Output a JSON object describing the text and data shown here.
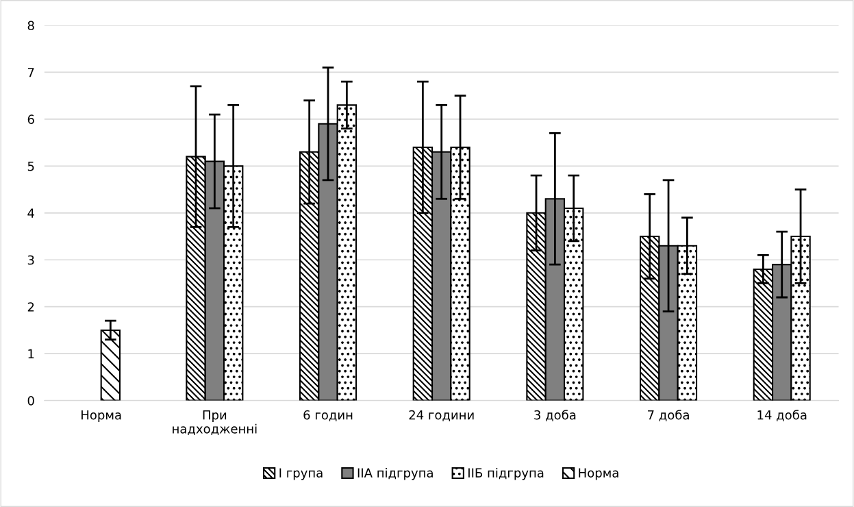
{
  "chart_data": {
    "type": "bar",
    "categories": [
      "Норма",
      "При\nнадходженні",
      "6 годин",
      "24 години",
      "3 доба",
      "7 доба",
      "14 доба"
    ],
    "series": [
      {
        "name": "I група",
        "color": "#000000",
        "values": [
          null,
          5.2,
          5.3,
          5.4,
          4.0,
          3.5,
          2.8
        ],
        "errors": [
          null,
          1.5,
          1.1,
          1.4,
          0.8,
          0.9,
          0.3
        ]
      },
      {
        "name": "IIA підгрупа",
        "color": "#808080",
        "values": [
          null,
          5.1,
          5.9,
          5.3,
          4.3,
          3.3,
          2.9
        ],
        "errors": [
          null,
          1.0,
          1.2,
          1.0,
          1.4,
          1.4,
          0.7
        ]
      },
      {
        "name": "IIБ підгрупа",
        "color": "#000000",
        "values": [
          null,
          5.0,
          6.3,
          5.4,
          4.1,
          3.3,
          3.5
        ],
        "errors": [
          null,
          1.3,
          0.5,
          1.1,
          0.7,
          0.6,
          1.0
        ]
      },
      {
        "name": "Норма",
        "color": "#000000",
        "values": [
          1.5,
          null,
          null,
          null,
          null,
          null,
          null
        ],
        "errors": [
          0.2,
          null,
          null,
          null,
          null,
          null,
          null
        ]
      }
    ],
    "ylim": [
      0,
      8
    ],
    "yticks": [
      0,
      1,
      2,
      3,
      4,
      5,
      6,
      7,
      8
    ],
    "grid": "y",
    "legend": "bottom"
  }
}
